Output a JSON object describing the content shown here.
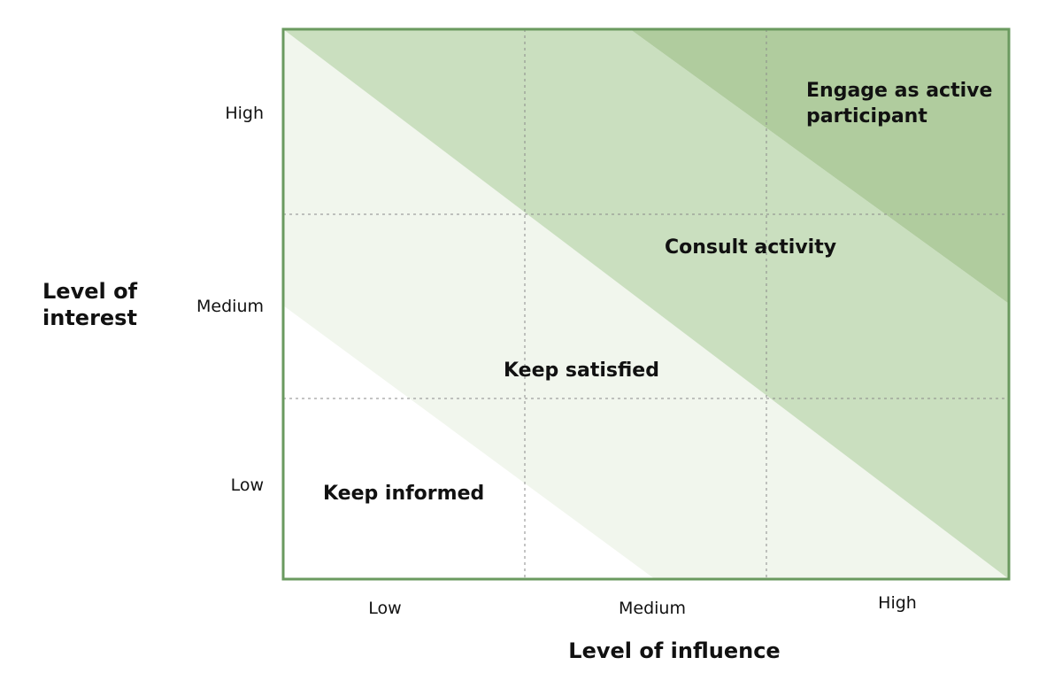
{
  "y_axis": {
    "title": "Level of interest",
    "ticks": [
      "High",
      "Medium",
      "Low"
    ]
  },
  "x_axis": {
    "title": "Level of influence",
    "ticks": [
      "Low",
      "Medium",
      "High"
    ]
  },
  "zones": {
    "engage": "Engage as active participant",
    "consult": "Consult activity",
    "satisfied": "Keep satisfied",
    "informed": "Keep informed"
  },
  "colors": {
    "border": "#6a9a5f",
    "zone_engage": "#b0cc9e",
    "zone_consult": "#cadfbf",
    "zone_satisfied": "#f1f6ed",
    "zone_informed": "#ffffff",
    "gridline": "#8a8a8a"
  }
}
